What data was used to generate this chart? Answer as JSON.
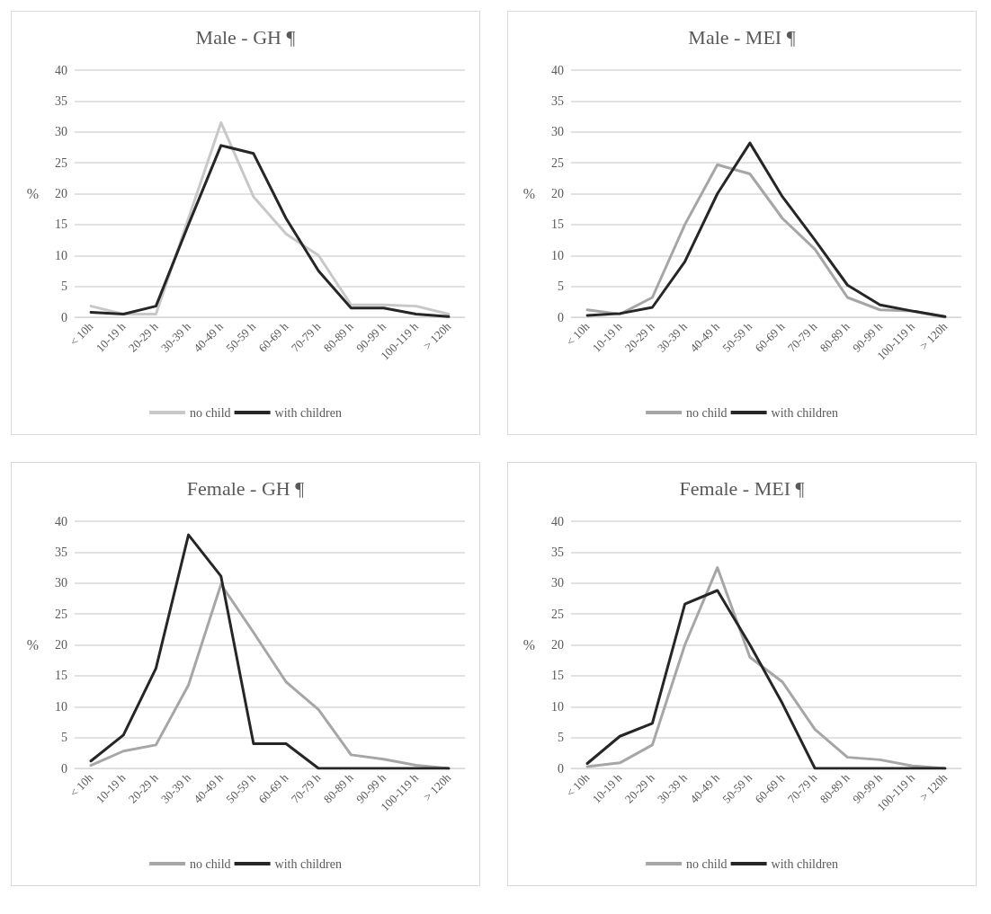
{
  "chart_data": [
    {
      "type": "line",
      "title": "Male - GH ¶",
      "ylabel": "%",
      "categories": [
        "< 10h",
        "10-19 h",
        "20-29 h",
        "30-39 h",
        "40-49 h",
        "50-59 h",
        "60-69 h",
        "70-79 h",
        "80-89 h",
        "90-99 h",
        "100-119 h",
        "> 120h"
      ],
      "ylim": [
        0,
        40
      ],
      "yticks": [
        0,
        5,
        10,
        15,
        20,
        25,
        30,
        35,
        40
      ],
      "grid": "y",
      "legend": "bottom",
      "marker": "none",
      "line_style": "solid",
      "series": [
        {
          "name": "no child",
          "color": "#c8c8c8",
          "values": [
            1.8,
            0.5,
            0.5,
            16,
            31.5,
            19.5,
            13.5,
            10,
            2,
            2,
            1.8,
            0.5
          ]
        },
        {
          "name": "with children",
          "color": "#262626",
          "values": [
            0.8,
            0.5,
            1.8,
            15,
            27.8,
            26.5,
            16,
            7.5,
            1.5,
            1.5,
            0.5,
            0.1
          ]
        }
      ]
    },
    {
      "type": "line",
      "title": "Male - MEI ¶",
      "ylabel": "%",
      "categories": [
        "< 10h",
        "10-19 h",
        "20-29 h",
        "30-39 h",
        "40-49 h",
        "50-59 h",
        "60-69 h",
        "70-79 h",
        "80-89 h",
        "90-99 h",
        "100-119 h",
        "> 120h"
      ],
      "ylim": [
        0,
        40
      ],
      "yticks": [
        0,
        5,
        10,
        15,
        20,
        25,
        30,
        35,
        40
      ],
      "grid": "y",
      "legend": "bottom",
      "marker": "none",
      "line_style": "solid",
      "series": [
        {
          "name": "no child",
          "color": "#a6a6a6",
          "values": [
            1.2,
            0.5,
            3.2,
            15,
            24.7,
            23.2,
            16,
            11,
            3.2,
            1.2,
            1,
            0
          ]
        },
        {
          "name": "with children",
          "color": "#262626",
          "values": [
            0.3,
            0.6,
            1.6,
            9,
            20,
            28.2,
            19.5,
            12.5,
            5.2,
            2,
            1,
            0.1
          ]
        }
      ]
    },
    {
      "type": "line",
      "title": "Female - GH ¶",
      "ylabel": "%",
      "categories": [
        "< 10h",
        "10-19 h",
        "20-29 h",
        "30-39 h",
        "40-49 h",
        "50-59 h",
        "60-69 h",
        "70-79 h",
        "80-89 h",
        "90-99 h",
        "100-119 h",
        "> 120h"
      ],
      "ylim": [
        0,
        40
      ],
      "yticks": [
        0,
        5,
        10,
        15,
        20,
        25,
        30,
        35,
        40
      ],
      "grid": "y",
      "legend": "bottom",
      "marker": "none",
      "line_style": "solid",
      "series": [
        {
          "name": "no child",
          "color": "#a6a6a6",
          "values": [
            0.5,
            2.8,
            3.8,
            13.5,
            29.8,
            22,
            14,
            9.5,
            2.2,
            1.5,
            0.5,
            0
          ]
        },
        {
          "name": "with children",
          "color": "#262626",
          "values": [
            1.2,
            5.4,
            16.2,
            37.8,
            31.1,
            4,
            4,
            0,
            0,
            0,
            0,
            0
          ]
        }
      ]
    },
    {
      "type": "line",
      "title": "Female - MEI ¶",
      "ylabel": "%",
      "categories": [
        "< 10h",
        "10-19 h",
        "20-29 h",
        "30-39 h",
        "40-49 h",
        "50-59 h",
        "60-69 h",
        "70-79 h",
        "80-89 h",
        "90-99 h",
        "100-119 h",
        "> 120h"
      ],
      "ylim": [
        0,
        40
      ],
      "yticks": [
        0,
        5,
        10,
        15,
        20,
        25,
        30,
        35,
        40
      ],
      "grid": "y",
      "legend": "bottom",
      "marker": "none",
      "line_style": "solid",
      "series": [
        {
          "name": "no child",
          "color": "#a6a6a6",
          "values": [
            0.3,
            0.9,
            3.8,
            20,
            32.5,
            18,
            14,
            6.3,
            1.8,
            1.4,
            0.4,
            0
          ]
        },
        {
          "name": "with children",
          "color": "#262626",
          "values": [
            0.8,
            5.2,
            7.3,
            26.6,
            28.8,
            20,
            10.5,
            0,
            0,
            0,
            0,
            0
          ]
        }
      ]
    }
  ]
}
